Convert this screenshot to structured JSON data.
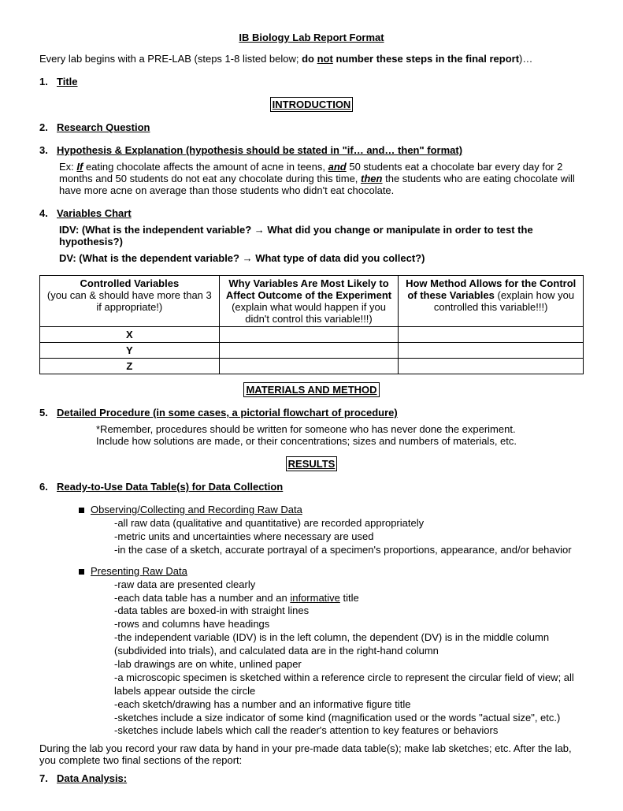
{
  "title": "IB Biology Lab Report Format",
  "intro_prefix": "Every lab begins with a PRE-LAB (steps 1-8 listed below; ",
  "intro_bold": "do not number these steps in the final report",
  "intro_suffix": ")…",
  "not_word": "not",
  "s1_num": "1.",
  "s1_label": "Title",
  "box_intro": "INTRODUCTION",
  "s2_num": "2.",
  "s2_label": "Research Question",
  "s3_num": "3.",
  "s3_label": "Hypothesis & Explanation (hypothesis should be stated in \"if… and… then\" format)",
  "s3_ex_prefix": "Ex: ",
  "s3_if": "If",
  "s3_ex_mid1": " eating chocolate affects the amount of acne in teens, ",
  "s3_and": "and",
  "s3_ex_mid2": " 50 students eat a chocolate bar every day for 2 months and 50 students do not eat any chocolate during this time, ",
  "s3_then": "then",
  "s3_ex_end": " the students who are eating chocolate will have more acne on average than those students who didn't eat chocolate.",
  "s4_num": "4.",
  "s4_label": "Variables Chart",
  "s4_idv": "IDV: (What is the independent variable?  →  What did you change or manipulate in order to test the hypothesis?)",
  "s4_dv": "DV: (What is the dependent variable?  →  What type of data did you collect?)",
  "table": {
    "h1a": "Controlled Variables",
    "h1b": "(you can & should have more than 3 if appropriate!)",
    "h2a": "Why Variables Are Most Likely to Affect Outcome of the Experiment",
    "h2b": "(explain what would happen if you didn't control this variable!!!)",
    "h3a": "How Method Allows for the Control of these Variables",
    "h3b": " (explain how you controlled this variable!!!)",
    "r1": "X",
    "r2": "Y",
    "r3": "Z"
  },
  "box_mm": "MATERIALS AND METHOD",
  "s5_num": "5.",
  "s5_label": "Detailed Procedure (in some cases, a pictorial flowchart of procedure)",
  "s5_note1": "*Remember, procedures should be written for someone who has never done the experiment.",
  "s5_note2": "Include how solutions are made, or their concentrations; sizes and numbers of materials, etc.",
  "box_results": "RESULTS",
  "s6_num": "6.",
  "s6_label": "Ready-to-Use Data Table(s) for Data Collection",
  "b1": "Observing/Collecting and Recording Raw Data",
  "b1_items": [
    "-all raw data (qualitative and quantitative) are recorded appropriately",
    "-metric units and uncertainties where necessary are used",
    "-in the case of a sketch, accurate portrayal of a specimen's proportions, appearance, and/or behavior"
  ],
  "b2": "Presenting Raw Data",
  "b2_i1": "-raw data are presented clearly",
  "b2_i2a": "-each data table has a number and an ",
  "b2_i2b": "informative",
  "b2_i2c": " title",
  "b2_items_rest": [
    "-data tables are boxed-in with straight lines",
    "-rows and columns have headings",
    "-the independent variable (IDV) is in the left column, the dependent (DV) is in the middle column (subdivided into trials), and calculated data are in the right-hand column",
    "-lab drawings are on white, unlined paper",
    "-a microscopic specimen is sketched within a reference circle to represent the circular field of view; all labels appear outside the circle",
    "-each sketch/drawing has a number and an informative figure title",
    "-sketches include a size indicator of some kind (magnification used or the words \"actual size\", etc.)",
    "-sketches include labels which call the reader's attention to key features or behaviors"
  ],
  "closing": "During the lab you record your raw data by hand in your pre-made data table(s); make lab sketches; etc.  After the lab, you complete two final sections of the report:",
  "s7_num": "7.",
  "s7_label": "Data Analysis:"
}
